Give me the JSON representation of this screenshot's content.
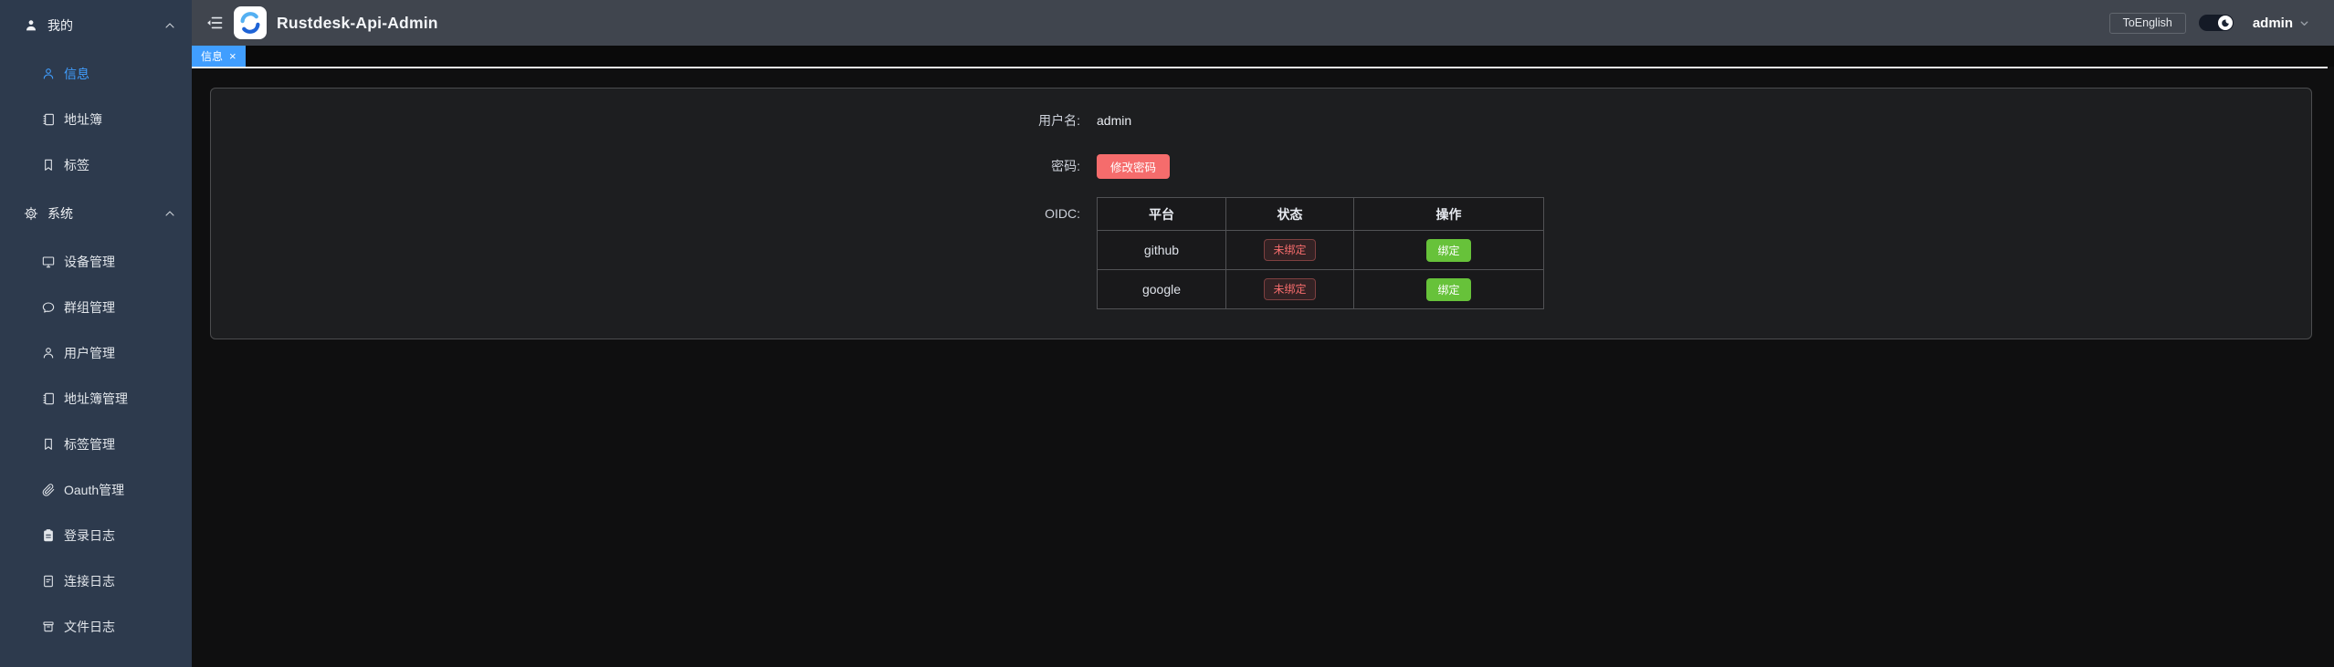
{
  "app": {
    "title": "Rustdesk-Api-Admin"
  },
  "header": {
    "language_button": "ToEnglish",
    "username": "admin",
    "theme_toggle_state": "dark"
  },
  "sidebar": {
    "sections": [
      {
        "key": "my",
        "label": "我的",
        "icon": "user-filled",
        "expanded": true,
        "items": [
          {
            "key": "info",
            "label": "信息",
            "icon": "user",
            "active": true
          },
          {
            "key": "address-book",
            "label": "地址簿",
            "icon": "notebook",
            "active": false
          },
          {
            "key": "tags",
            "label": "标签",
            "icon": "bookmark",
            "active": false
          }
        ]
      },
      {
        "key": "system",
        "label": "系统",
        "icon": "gear",
        "expanded": true,
        "items": [
          {
            "key": "device-management",
            "label": "设备管理",
            "icon": "monitor",
            "active": false
          },
          {
            "key": "group-management",
            "label": "群组管理",
            "icon": "chat",
            "active": false
          },
          {
            "key": "user-management",
            "label": "用户管理",
            "icon": "user",
            "active": false
          },
          {
            "key": "address-book-management",
            "label": "地址簿管理",
            "icon": "notebook",
            "active": false
          },
          {
            "key": "tag-management",
            "label": "标签管理",
            "icon": "bookmark",
            "active": false
          },
          {
            "key": "oauth-management",
            "label": "Oauth管理",
            "icon": "paperclip",
            "active": false
          },
          {
            "key": "login-logs",
            "label": "登录日志",
            "icon": "clipboard",
            "active": false
          },
          {
            "key": "connection-logs",
            "label": "连接日志",
            "icon": "document",
            "active": false
          },
          {
            "key": "file-logs",
            "label": "文件日志",
            "icon": "archive",
            "active": false
          }
        ]
      }
    ]
  },
  "tabs": [
    {
      "label": "信息",
      "active": true,
      "closable": true
    }
  ],
  "form": {
    "username_label": "用户名:",
    "username_value": "admin",
    "password_label": "密码:",
    "change_password_label": "修改密码",
    "oidc_label": "OIDC:"
  },
  "oidc_table": {
    "headers": [
      "平台",
      "状态",
      "操作"
    ],
    "rows": [
      {
        "platform": "github",
        "status": "未绑定",
        "action": "绑定"
      },
      {
        "platform": "google",
        "status": "未绑定",
        "action": "绑定"
      }
    ]
  },
  "colors": {
    "accent_blue": "#409eff",
    "danger_red": "#f56c6c",
    "success_green": "#67c23a",
    "sidebar_bg": "#2d3a4d",
    "header_bg": "#40454e",
    "card_bg": "#1d1e20"
  }
}
